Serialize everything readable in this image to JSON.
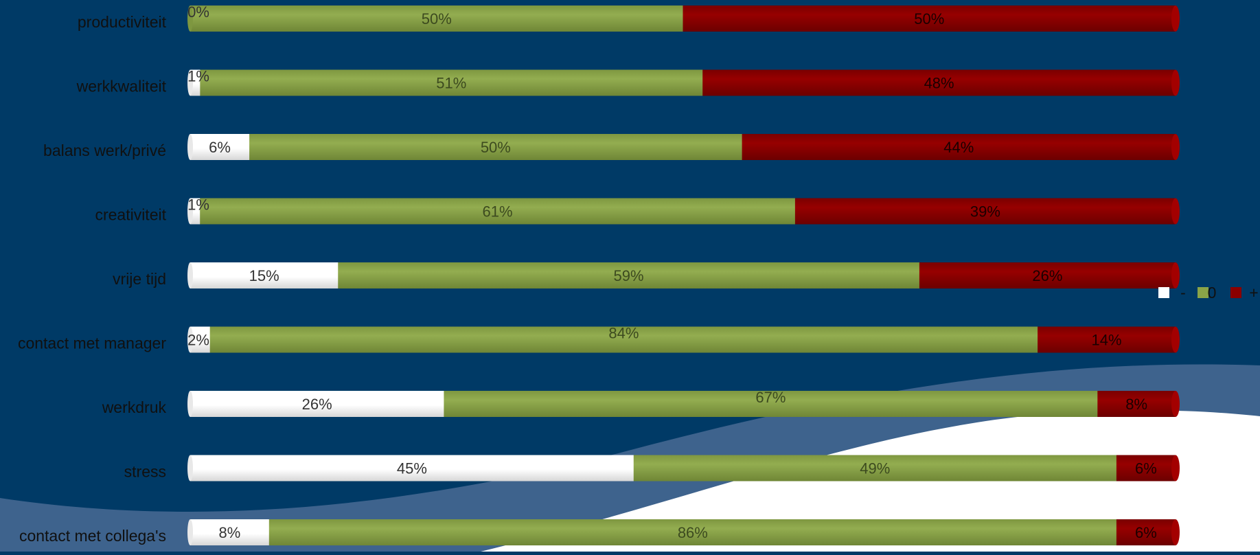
{
  "chart_data": {
    "type": "bar",
    "stacked": true,
    "orientation": "horizontal",
    "percent": true,
    "categories": [
      "productiviteit",
      "werkkwaliteit",
      "balans werk/privé",
      "creativiteit",
      "vrije tijd",
      "contact met manager",
      "werkdruk",
      "stress",
      "contact met collega's"
    ],
    "series": [
      {
        "name": "-",
        "color": "#ffffff",
        "values": [
          0,
          1,
          6,
          1,
          15,
          2,
          26,
          45,
          8
        ]
      },
      {
        "name": "0",
        "color": "#8aa448",
        "values": [
          50,
          51,
          50,
          61,
          59,
          84,
          67,
          49,
          86
        ]
      },
      {
        "name": "+",
        "color": "#8b0000",
        "values": [
          50,
          48,
          44,
          39,
          26,
          14,
          8,
          6,
          6
        ]
      }
    ],
    "data_labels": [
      [
        "0%",
        "50%",
        "50%"
      ],
      [
        "1%",
        "51%",
        "48%"
      ],
      [
        "6%",
        "50%",
        "44%"
      ],
      [
        "1%",
        "61%",
        "39%"
      ],
      [
        "15%",
        "59%",
        "26%"
      ],
      [
        "2%",
        "84%",
        "14%"
      ],
      [
        "26%",
        "67%",
        "8%"
      ],
      [
        "45%",
        "49%",
        "6%"
      ],
      [
        "8%",
        "86%",
        "6%"
      ]
    ],
    "xlim": [
      0,
      100
    ],
    "legend_position": "right",
    "grid": false
  },
  "colors": {
    "background": "#003a66",
    "wave_light": "#3e638d",
    "wave_white": "#ffffff",
    "category_label": "#101010",
    "green_label": "#3c4a1f",
    "red_label": "#1a0000",
    "white_label": "#333333"
  }
}
